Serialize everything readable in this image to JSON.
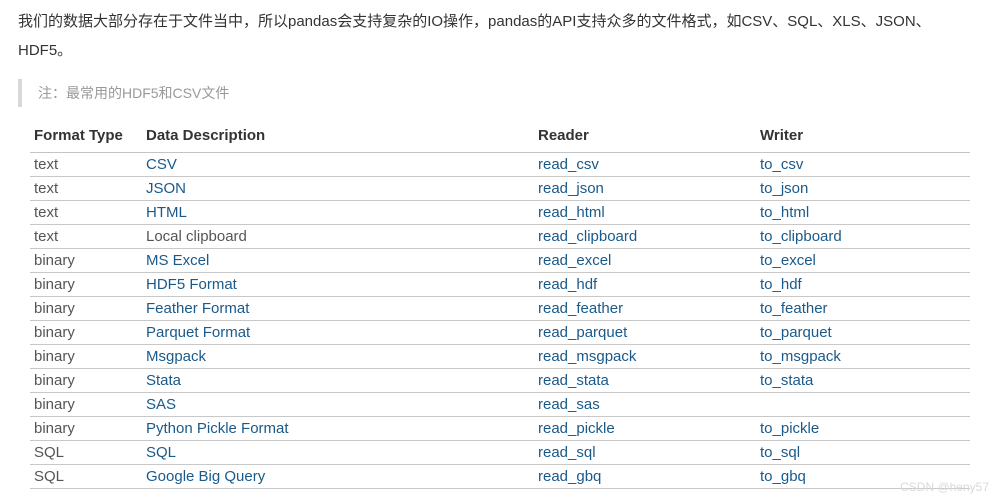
{
  "intro": "我们的数据大部分存在于文件当中，所以pandas会支持复杂的IO操作，pandas的API支持众多的文件格式，如CSV、SQL、XLS、JSON、HDF5。",
  "note": "注：最常用的HDF5和CSV文件",
  "table": {
    "headers": {
      "format": "Format Type",
      "desc": "Data Description",
      "reader": "Reader",
      "writer": "Writer"
    },
    "rows": [
      {
        "format": "text",
        "desc": "CSV",
        "desc_link": true,
        "reader": "read_csv",
        "writer": "to_csv"
      },
      {
        "format": "text",
        "desc": "JSON",
        "desc_link": true,
        "reader": "read_json",
        "writer": "to_json"
      },
      {
        "format": "text",
        "desc": "HTML",
        "desc_link": true,
        "reader": "read_html",
        "writer": "to_html"
      },
      {
        "format": "text",
        "desc": "Local clipboard",
        "desc_link": false,
        "reader": "read_clipboard",
        "writer": "to_clipboard"
      },
      {
        "format": "binary",
        "desc": "MS Excel",
        "desc_link": true,
        "reader": "read_excel",
        "writer": "to_excel"
      },
      {
        "format": "binary",
        "desc": "HDF5 Format",
        "desc_link": true,
        "reader": "read_hdf",
        "writer": "to_hdf"
      },
      {
        "format": "binary",
        "desc": "Feather Format",
        "desc_link": true,
        "reader": "read_feather",
        "writer": "to_feather"
      },
      {
        "format": "binary",
        "desc": "Parquet Format",
        "desc_link": true,
        "reader": "read_parquet",
        "writer": "to_parquet"
      },
      {
        "format": "binary",
        "desc": "Msgpack",
        "desc_link": true,
        "reader": "read_msgpack",
        "writer": "to_msgpack"
      },
      {
        "format": "binary",
        "desc": "Stata",
        "desc_link": true,
        "reader": "read_stata",
        "writer": "to_stata"
      },
      {
        "format": "binary",
        "desc": "SAS",
        "desc_link": true,
        "reader": "read_sas",
        "writer": ""
      },
      {
        "format": "binary",
        "desc": "Python Pickle Format",
        "desc_link": true,
        "reader": "read_pickle",
        "writer": "to_pickle"
      },
      {
        "format": "SQL",
        "desc": "SQL",
        "desc_link": true,
        "reader": "read_sql",
        "writer": "to_sql"
      },
      {
        "format": "SQL",
        "desc": "Google Big Query",
        "desc_link": true,
        "reader": "read_gbq",
        "writer": "to_gbq"
      }
    ]
  },
  "watermark": "CSDN @heny57"
}
